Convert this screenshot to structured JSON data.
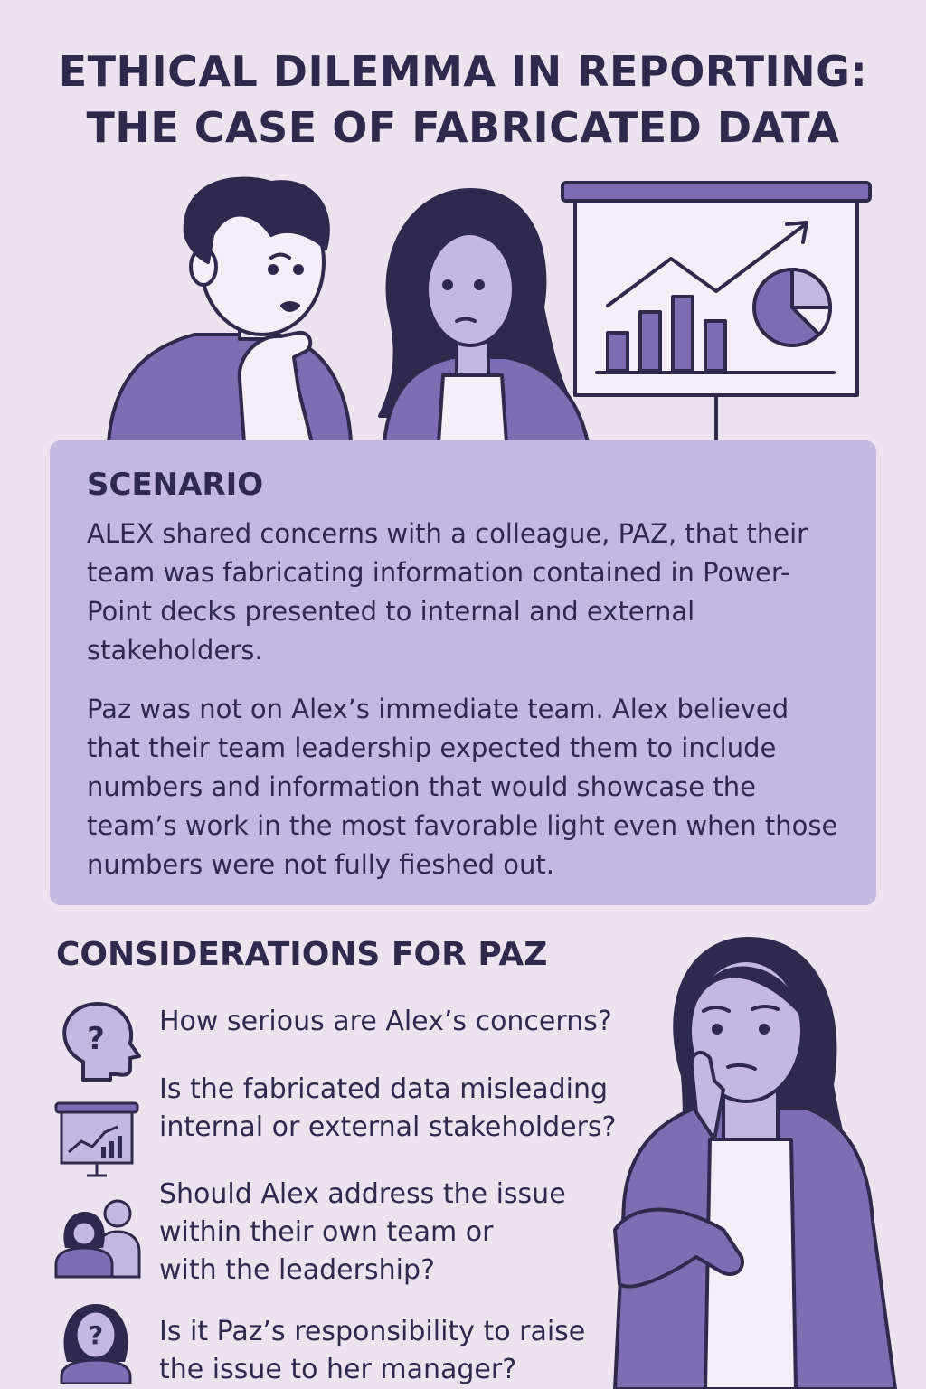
{
  "title": {
    "line1": "ETHICAL DILEMMA IN REPORTING:",
    "line2": "THE CASE OF FABRICATED DATA"
  },
  "colors": {
    "background": "#ebe3ee",
    "panel": "#c3b8df",
    "accent": "#7d6db3",
    "dark": "#2f2a4d"
  },
  "scenario": {
    "heading": "SCENARIO",
    "paragraph1": "ALEX shared concerns with a colleague, PAZ, that their team was fabricating information contained in Power-Point decks presented to internal and external stakeholders.",
    "paragraph2": "Paz was not on Alex’s immediate team. Alex believed that their team leadership expected them to include numbers and information that would showcase the team’s work in the most favorable light even when those numbers were not fully fieshed out."
  },
  "considerations": {
    "heading": "CONSIDERATIONS FOR PAZ",
    "items": [
      {
        "icon": "head-question-icon",
        "text": "How serious are Alex’s concerns?"
      },
      {
        "icon": "presentation-chart-icon",
        "text": "Is the fabricated data misleading\ninternal or external stakeholders?"
      },
      {
        "icon": "team-people-icon",
        "text": "Should Alex address the issue\nwithin their own team or\nwith the leadership?"
      },
      {
        "icon": "person-question-icon",
        "text": "Is it Paz’s responsibility to raise\nthe issue to her manager?"
      }
    ]
  }
}
